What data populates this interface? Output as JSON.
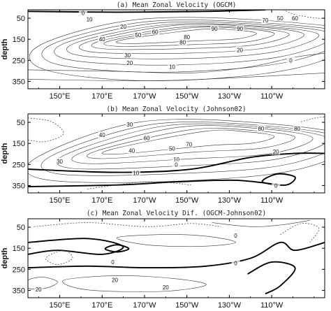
{
  "chart_data": [
    {
      "type": "contour",
      "title": "(a) Mean Zonal Velocity (OGCM)",
      "ylabel": "depth",
      "xticks": [
        "150°E",
        "170°E",
        "170°W",
        "150°W",
        "130°W",
        "110°W"
      ],
      "yticks": [
        "50",
        "150",
        "250",
        "350"
      ],
      "contour_labels": [
        {
          "text": "0",
          "lon": 161,
          "depth": 25
        },
        {
          "text": "10",
          "lon": 164,
          "depth": 55
        },
        {
          "text": "20",
          "lon": 180,
          "depth": 90
        },
        {
          "text": "40",
          "lon": 170,
          "depth": 150
        },
        {
          "text": "50",
          "lon": 187,
          "depth": 130
        },
        {
          "text": "60",
          "lon": 195,
          "depth": 115
        },
        {
          "text": "80",
          "lon": 210,
          "depth": 140
        },
        {
          "text": "90",
          "lon": 223,
          "depth": 100
        },
        {
          "text": "70",
          "lon": 247,
          "depth": 60
        },
        {
          "text": "50",
          "lon": 254,
          "depth": 50
        },
        {
          "text": "60",
          "lon": 261,
          "depth": 50
        },
        {
          "text": "90",
          "lon": 235,
          "depth": 100
        },
        {
          "text": "80",
          "lon": 208,
          "depth": 165
        },
        {
          "text": "30",
          "lon": 182,
          "depth": 225
        },
        {
          "text": "20",
          "lon": 183,
          "depth": 262
        },
        {
          "text": "10",
          "lon": 203,
          "depth": 280
        },
        {
          "text": "20",
          "lon": 235,
          "depth": 200
        },
        {
          "text": "0",
          "lon": 259,
          "depth": 250
        }
      ]
    },
    {
      "type": "contour",
      "title": "(b) Mean Zonal Velocity (Johnson02)",
      "ylabel": "depth",
      "xticks": [
        "150°E",
        "170°E",
        "170°W",
        "150°W",
        "130°W",
        "110°W"
      ],
      "yticks": [
        "50",
        "150",
        "250",
        "350"
      ],
      "contour_labels": [
        {
          "text": "30",
          "lon": 183,
          "depth": 60
        },
        {
          "text": "40",
          "lon": 170,
          "depth": 110
        },
        {
          "text": "60",
          "lon": 191,
          "depth": 125
        },
        {
          "text": "70",
          "lon": 211,
          "depth": 155
        },
        {
          "text": "50",
          "lon": 203,
          "depth": 175
        },
        {
          "text": "40",
          "lon": 184,
          "depth": 185
        },
        {
          "text": "30",
          "lon": 150,
          "depth": 235
        },
        {
          "text": "80",
          "lon": 245,
          "depth": 80
        },
        {
          "text": "80",
          "lon": 262,
          "depth": 80
        },
        {
          "text": "20",
          "lon": 252,
          "depth": 190
        },
        {
          "text": "10",
          "lon": 205,
          "depth": 225
        },
        {
          "text": "0",
          "lon": 205,
          "depth": 250
        },
        {
          "text": "10",
          "lon": 186,
          "depth": 290
        },
        {
          "text": "0",
          "lon": 252,
          "depth": 350
        }
      ]
    },
    {
      "type": "contour",
      "title": "(c) Mean Zonal Velocity Dif. (OGCM-Johnson02)",
      "ylabel": "depth",
      "xticks": [
        "150°E",
        "170°E",
        "170°W",
        "150°W",
        "130°W",
        "110°W"
      ],
      "yticks": [
        "50",
        "150",
        "250",
        "350"
      ],
      "contour_labels": [
        {
          "text": "0",
          "lon": 233,
          "depth": 90
        },
        {
          "text": "0",
          "lon": 175,
          "depth": 215
        },
        {
          "text": "0",
          "lon": 233,
          "depth": 220
        },
        {
          "text": "20",
          "lon": 176,
          "depth": 300
        },
        {
          "text": "20",
          "lon": 200,
          "depth": 335
        },
        {
          "text": "20",
          "lon": 140,
          "depth": 345
        }
      ]
    }
  ]
}
